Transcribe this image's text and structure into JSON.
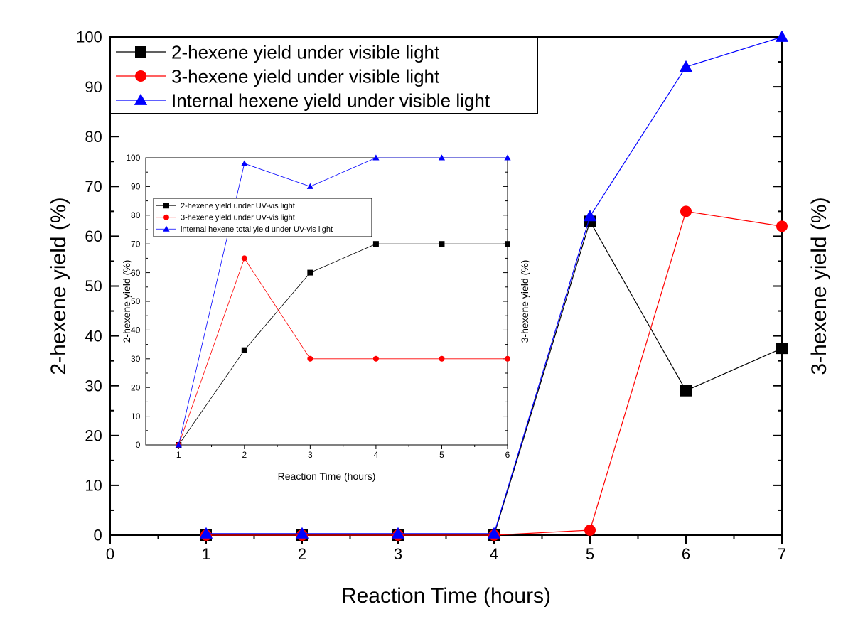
{
  "chart_data": [
    {
      "type": "line",
      "title": "",
      "xlabel": "Reaction Time (hours)",
      "ylabel": "2-hexene yield (%)",
      "ylabel_right": "3-hexene yield (%)",
      "xlim": [
        0,
        7
      ],
      "ylim": [
        0,
        100
      ],
      "xticks": [
        "0",
        "1",
        "2",
        "3",
        "4",
        "5",
        "6",
        "7"
      ],
      "yticks": [
        "0",
        "10",
        "20",
        "30",
        "40",
        "50",
        "60",
        "70",
        "80",
        "90",
        "100"
      ],
      "legend_position": "top-left",
      "grid": false,
      "series": [
        {
          "name": "2-hexene yield under visible light",
          "color": "#000000",
          "marker": "square",
          "x": [
            1,
            2,
            3,
            4,
            5,
            6,
            7
          ],
          "y": [
            0,
            0,
            0,
            0,
            63,
            29,
            37.5
          ]
        },
        {
          "name": "3-hexene yield under visible light",
          "color": "#ff0000",
          "marker": "circle",
          "x": [
            1,
            2,
            3,
            4,
            5,
            6,
            7
          ],
          "y": [
            0,
            0,
            0,
            0,
            1,
            65,
            62
          ]
        },
        {
          "name": "Internal hexene yield under visible light",
          "color": "#0000ff",
          "marker": "triangle",
          "x": [
            1,
            2,
            3,
            4,
            5,
            6,
            7
          ],
          "y": [
            0.3,
            0.3,
            0.3,
            0.3,
            64,
            94,
            100
          ]
        }
      ]
    },
    {
      "type": "line",
      "title": "",
      "xlabel": "Reaction Time (hours)",
      "ylabel": "2-hexene yield (%)",
      "ylabel_right": "3-hexene yield (%)",
      "xlim": [
        0.5,
        6
      ],
      "ylim": [
        0,
        100
      ],
      "xticks": [
        "1",
        "2",
        "3",
        "4",
        "5",
        "6"
      ],
      "yticks": [
        "0",
        "10",
        "20",
        "30",
        "40",
        "50",
        "60",
        "70",
        "80",
        "90",
        "100"
      ],
      "legend_position": "top-center",
      "grid": false,
      "series": [
        {
          "name": "2-hexene yield under UV-vis light",
          "color": "#000000",
          "marker": "square",
          "x": [
            1,
            2,
            3,
            4,
            5,
            6
          ],
          "y": [
            0,
            33,
            60,
            70,
            70,
            70
          ]
        },
        {
          "name": "3-hexene yield under UV-vis light",
          "color": "#ff0000",
          "marker": "circle",
          "x": [
            1,
            2,
            3,
            4,
            5,
            6
          ],
          "y": [
            0,
            65,
            30,
            30,
            30,
            30
          ]
        },
        {
          "name": "internal hexene total yield under UV-vis light",
          "color": "#0000ff",
          "marker": "triangle",
          "x": [
            1,
            2,
            3,
            4,
            5,
            6
          ],
          "y": [
            0,
            98,
            90,
            100,
            100,
            100
          ]
        }
      ]
    }
  ]
}
